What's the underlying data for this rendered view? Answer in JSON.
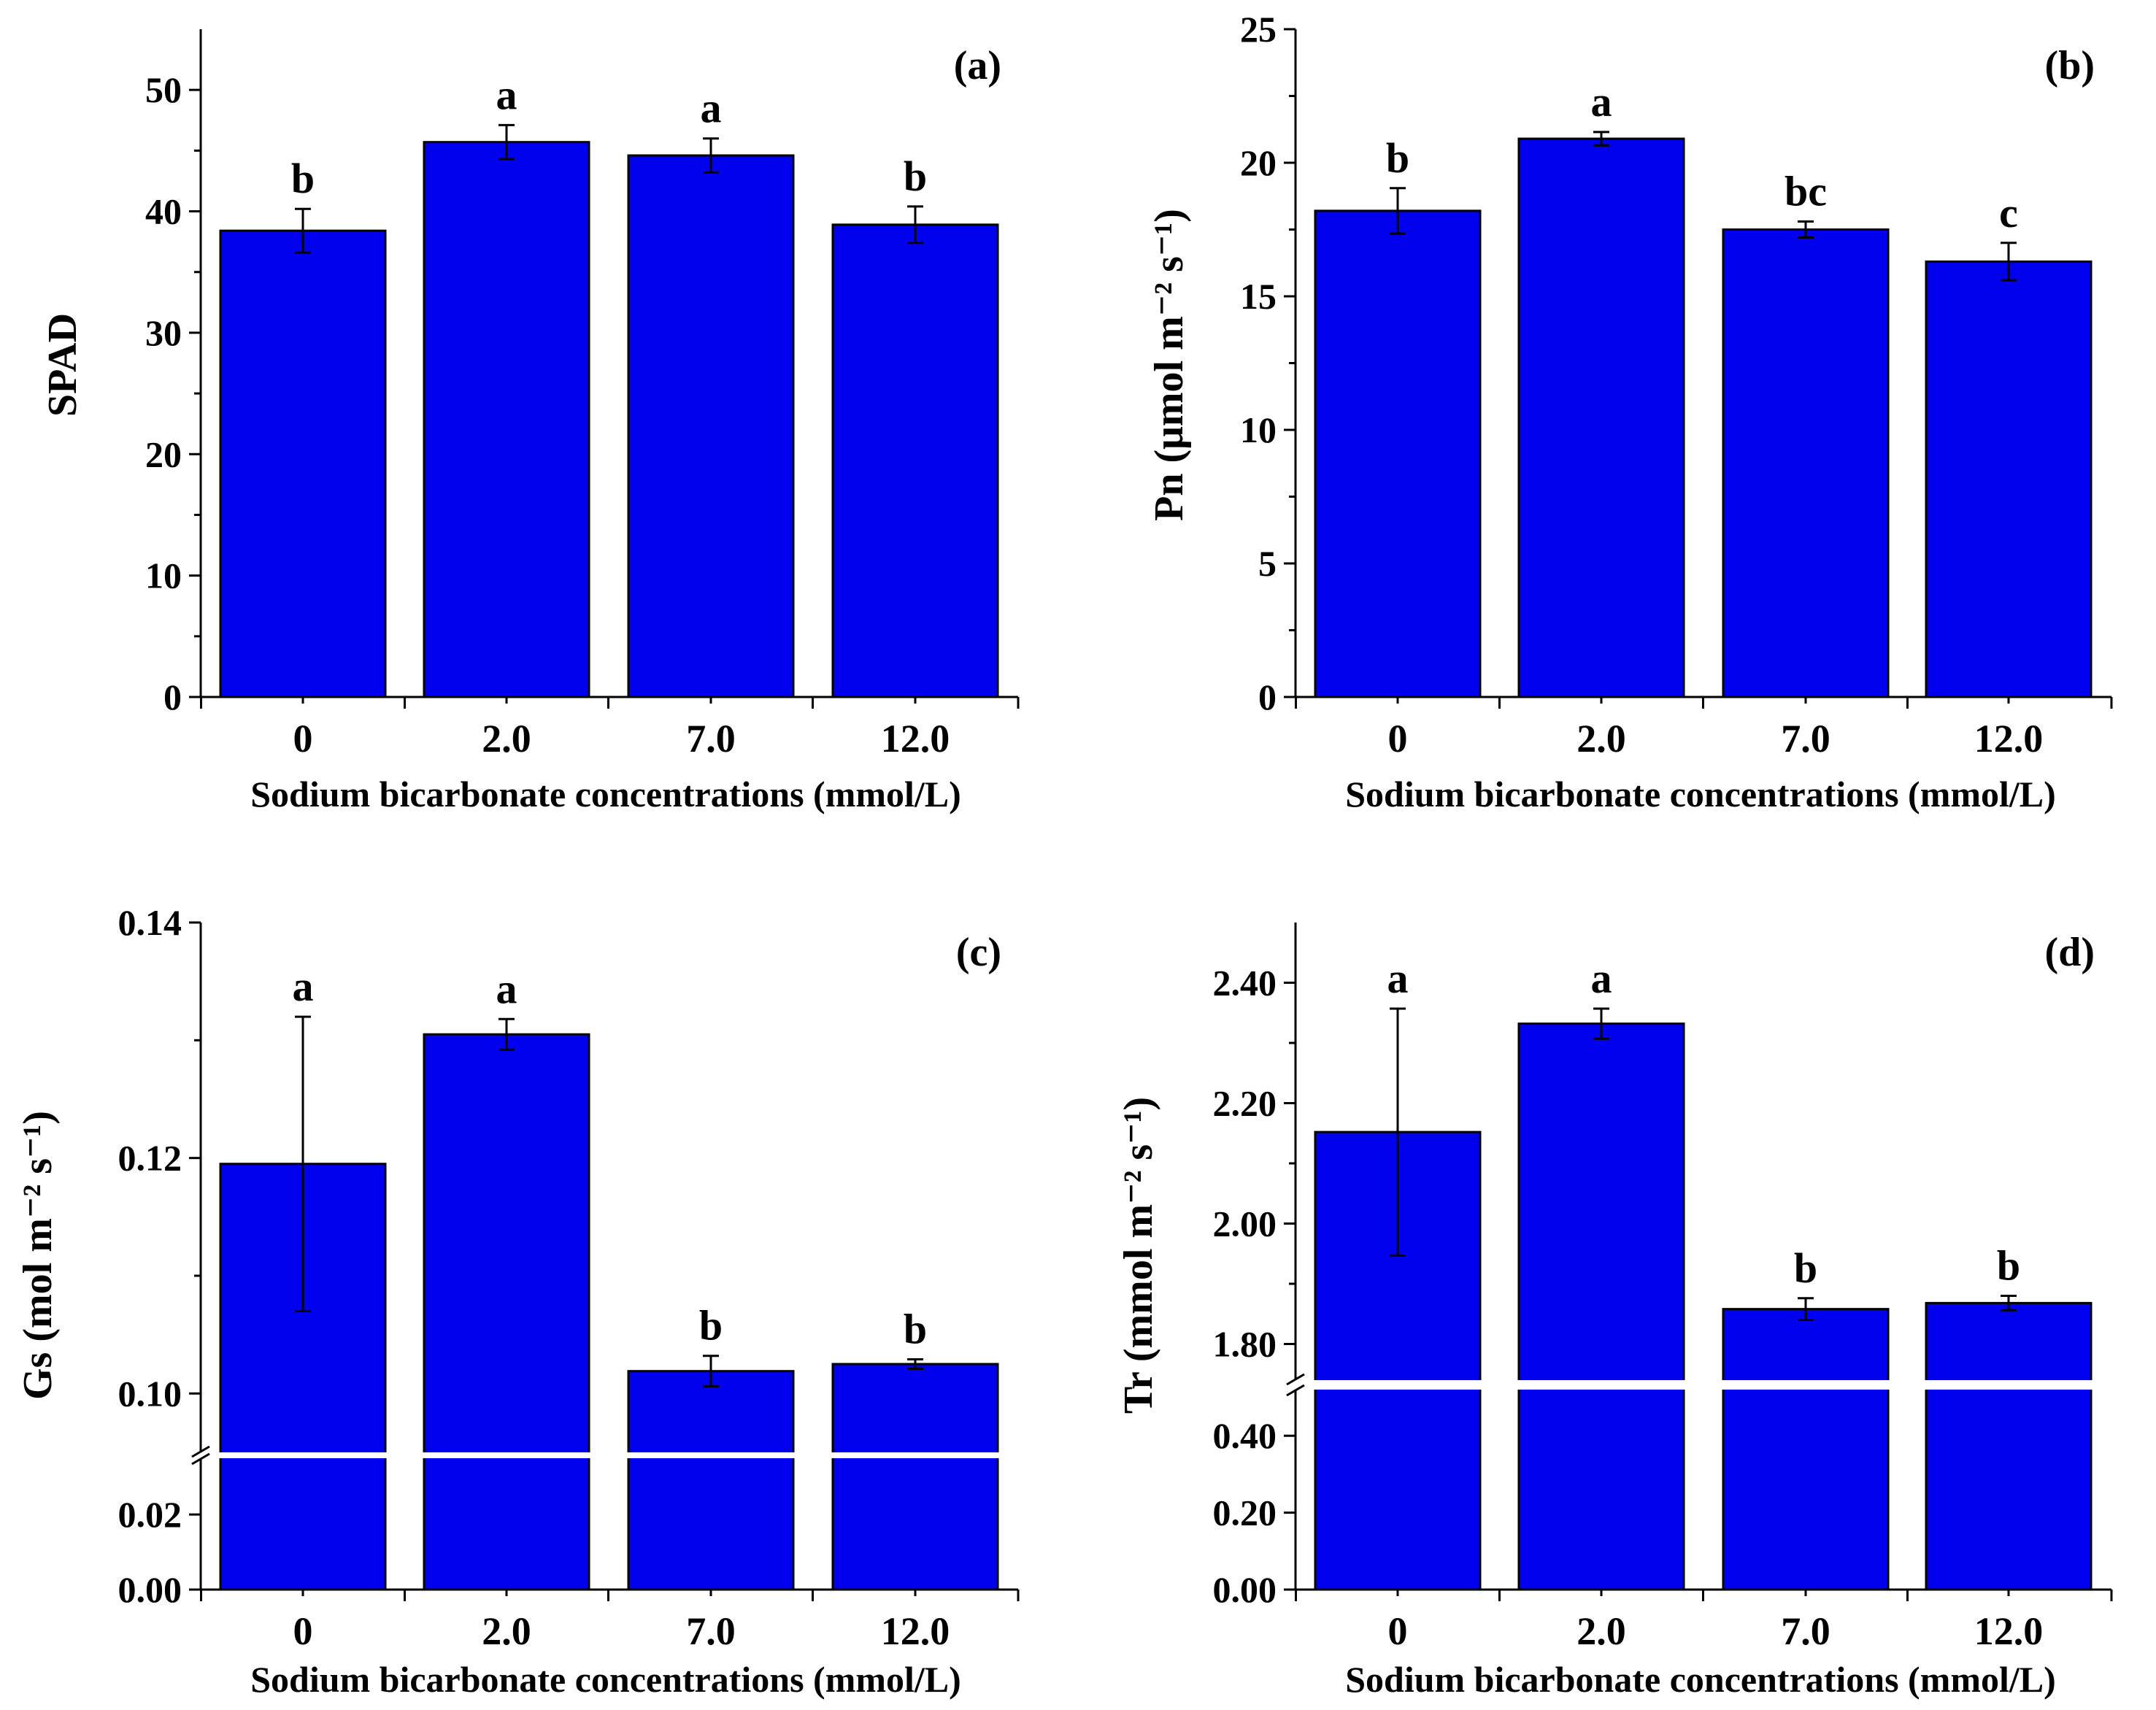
{
  "colors": {
    "bar": "#0000ee",
    "axis": "#000000",
    "background": "#ffffff"
  },
  "chart_data": [
    {
      "id": "a",
      "type": "bar",
      "panel_label": "(a)",
      "categories": [
        "0",
        "2.0",
        "7.0",
        "12.0"
      ],
      "values": [
        38.4,
        45.7,
        44.6,
        38.9
      ],
      "errors": [
        1.8,
        1.4,
        1.4,
        1.5
      ],
      "sig_letters": [
        "b",
        "a",
        "a",
        "b"
      ],
      "ylabel": "SPAD",
      "xlabel": "Sodium bicarbonate concentrations (mmol/L)",
      "ylim": [
        0,
        55
      ],
      "yticks": [
        "0",
        "10",
        "20",
        "30",
        "40",
        "50"
      ],
      "ytick_values": [
        0,
        10,
        20,
        30,
        40,
        50
      ]
    },
    {
      "id": "b",
      "type": "bar",
      "panel_label": "(b)",
      "categories": [
        "0",
        "2.0",
        "7.0",
        "12.0"
      ],
      "values": [
        18.2,
        20.9,
        17.5,
        16.3
      ],
      "errors": [
        0.85,
        0.25,
        0.3,
        0.7
      ],
      "sig_letters": [
        "b",
        "a",
        "bc",
        "c"
      ],
      "ylabel": "Pn (μmol m⁻² s⁻¹)",
      "xlabel": "Sodium bicarbonate concentrations (mmol/L)",
      "ylim": [
        0,
        25
      ],
      "yticks": [
        "0",
        "5",
        "10",
        "15",
        "20",
        "25"
      ],
      "ytick_values": [
        0,
        5,
        10,
        15,
        20,
        25
      ]
    },
    {
      "id": "c",
      "type": "bar",
      "panel_label": "(c)",
      "categories": [
        "0",
        "2.0",
        "7.0",
        "12.0"
      ],
      "values": [
        0.1195,
        0.1305,
        0.1019,
        0.1025
      ],
      "errors": [
        0.0125,
        0.0013,
        0.0013,
        0.0004
      ],
      "sig_letters": [
        "a",
        "a",
        "b",
        "b"
      ],
      "ylabel": "Gs (mol m⁻² s⁻¹)",
      "xlabel": "Sodium bicarbonate concentrations (mmol/L)",
      "axis_break": {
        "lower_range": [
          0,
          0.035
        ],
        "upper_range": [
          0.095,
          0.14
        ]
      },
      "yticks_lower": [
        "0.00",
        "0.02"
      ],
      "ytick_values_lower": [
        0,
        0.02
      ],
      "yticks_upper": [
        "0.10",
        "0.12",
        "0.14"
      ],
      "ytick_values_upper": [
        0.1,
        0.12,
        0.14
      ]
    },
    {
      "id": "d",
      "type": "bar",
      "panel_label": "(d)",
      "categories": [
        "0",
        "2.0",
        "7.0",
        "12.0"
      ],
      "values": [
        2.152,
        2.332,
        1.858,
        1.868
      ],
      "errors": [
        0.205,
        0.025,
        0.018,
        0.012
      ],
      "sig_letters": [
        "a",
        "a",
        "b",
        "b"
      ],
      "ylabel": "Tr (mmol m⁻² s⁻¹)",
      "xlabel": "Sodium bicarbonate concentrations (mmol/L)",
      "axis_break": {
        "lower_range": [
          0,
          0.52
        ],
        "upper_range": [
          1.74,
          2.5
        ]
      },
      "yticks_lower": [
        "0.00",
        "0.20",
        "0.40"
      ],
      "ytick_values_lower": [
        0,
        0.2,
        0.4
      ],
      "yticks_upper": [
        "1.80",
        "2.00",
        "2.20",
        "2.40"
      ],
      "ytick_values_upper": [
        1.8,
        2.0,
        2.2,
        2.4
      ]
    }
  ]
}
